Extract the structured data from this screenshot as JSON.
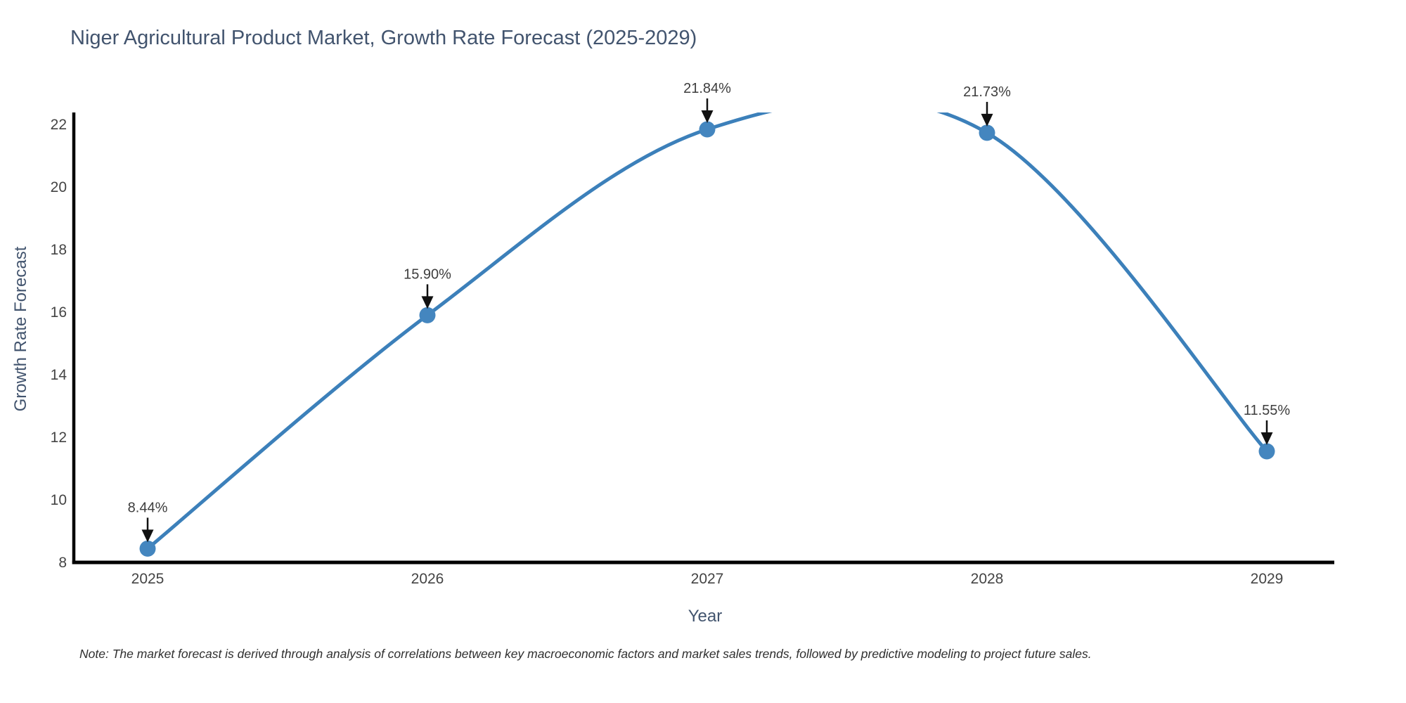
{
  "header": {
    "title": "Niger Agricultural Product Market, Growth Rate Forecast (2025-2029)"
  },
  "chart_data": {
    "type": "line",
    "x": [
      2025,
      2026,
      2027,
      2028,
      2029
    ],
    "series": [
      {
        "name": "Growth Rate Forecast",
        "values": [
          8.44,
          15.9,
          21.84,
          21.73,
          11.55
        ]
      }
    ],
    "point_labels": [
      "8.44%",
      "15.90%",
      "21.84%",
      "21.73%",
      "11.55%"
    ],
    "title": "Niger Agricultural Product Market, Growth Rate Forecast (2025-2029)",
    "xlabel": "Year",
    "ylabel": "Growth Rate Forecast",
    "yticks": [
      8,
      10,
      12,
      14,
      16,
      18,
      20,
      22
    ],
    "ylim": [
      8,
      22.38
    ],
    "grid": false,
    "legend": "none",
    "line_shape": "spline",
    "overshoot_clipped_at_top": true,
    "annotations": "black down-arrows from each percentage label to its data point",
    "colors": {
      "line": "#3c80ba",
      "marker": "#4486bf",
      "axis": "#000000",
      "heading": "#42546e",
      "tick": "#444444",
      "annotation": "#3d3d3d",
      "note": "#2f2f2f"
    }
  },
  "footer": {
    "note": "Note: The market forecast is derived through analysis of correlations between key macroeconomic factors and market sales trends, followed by predictive modeling to project future sales."
  }
}
